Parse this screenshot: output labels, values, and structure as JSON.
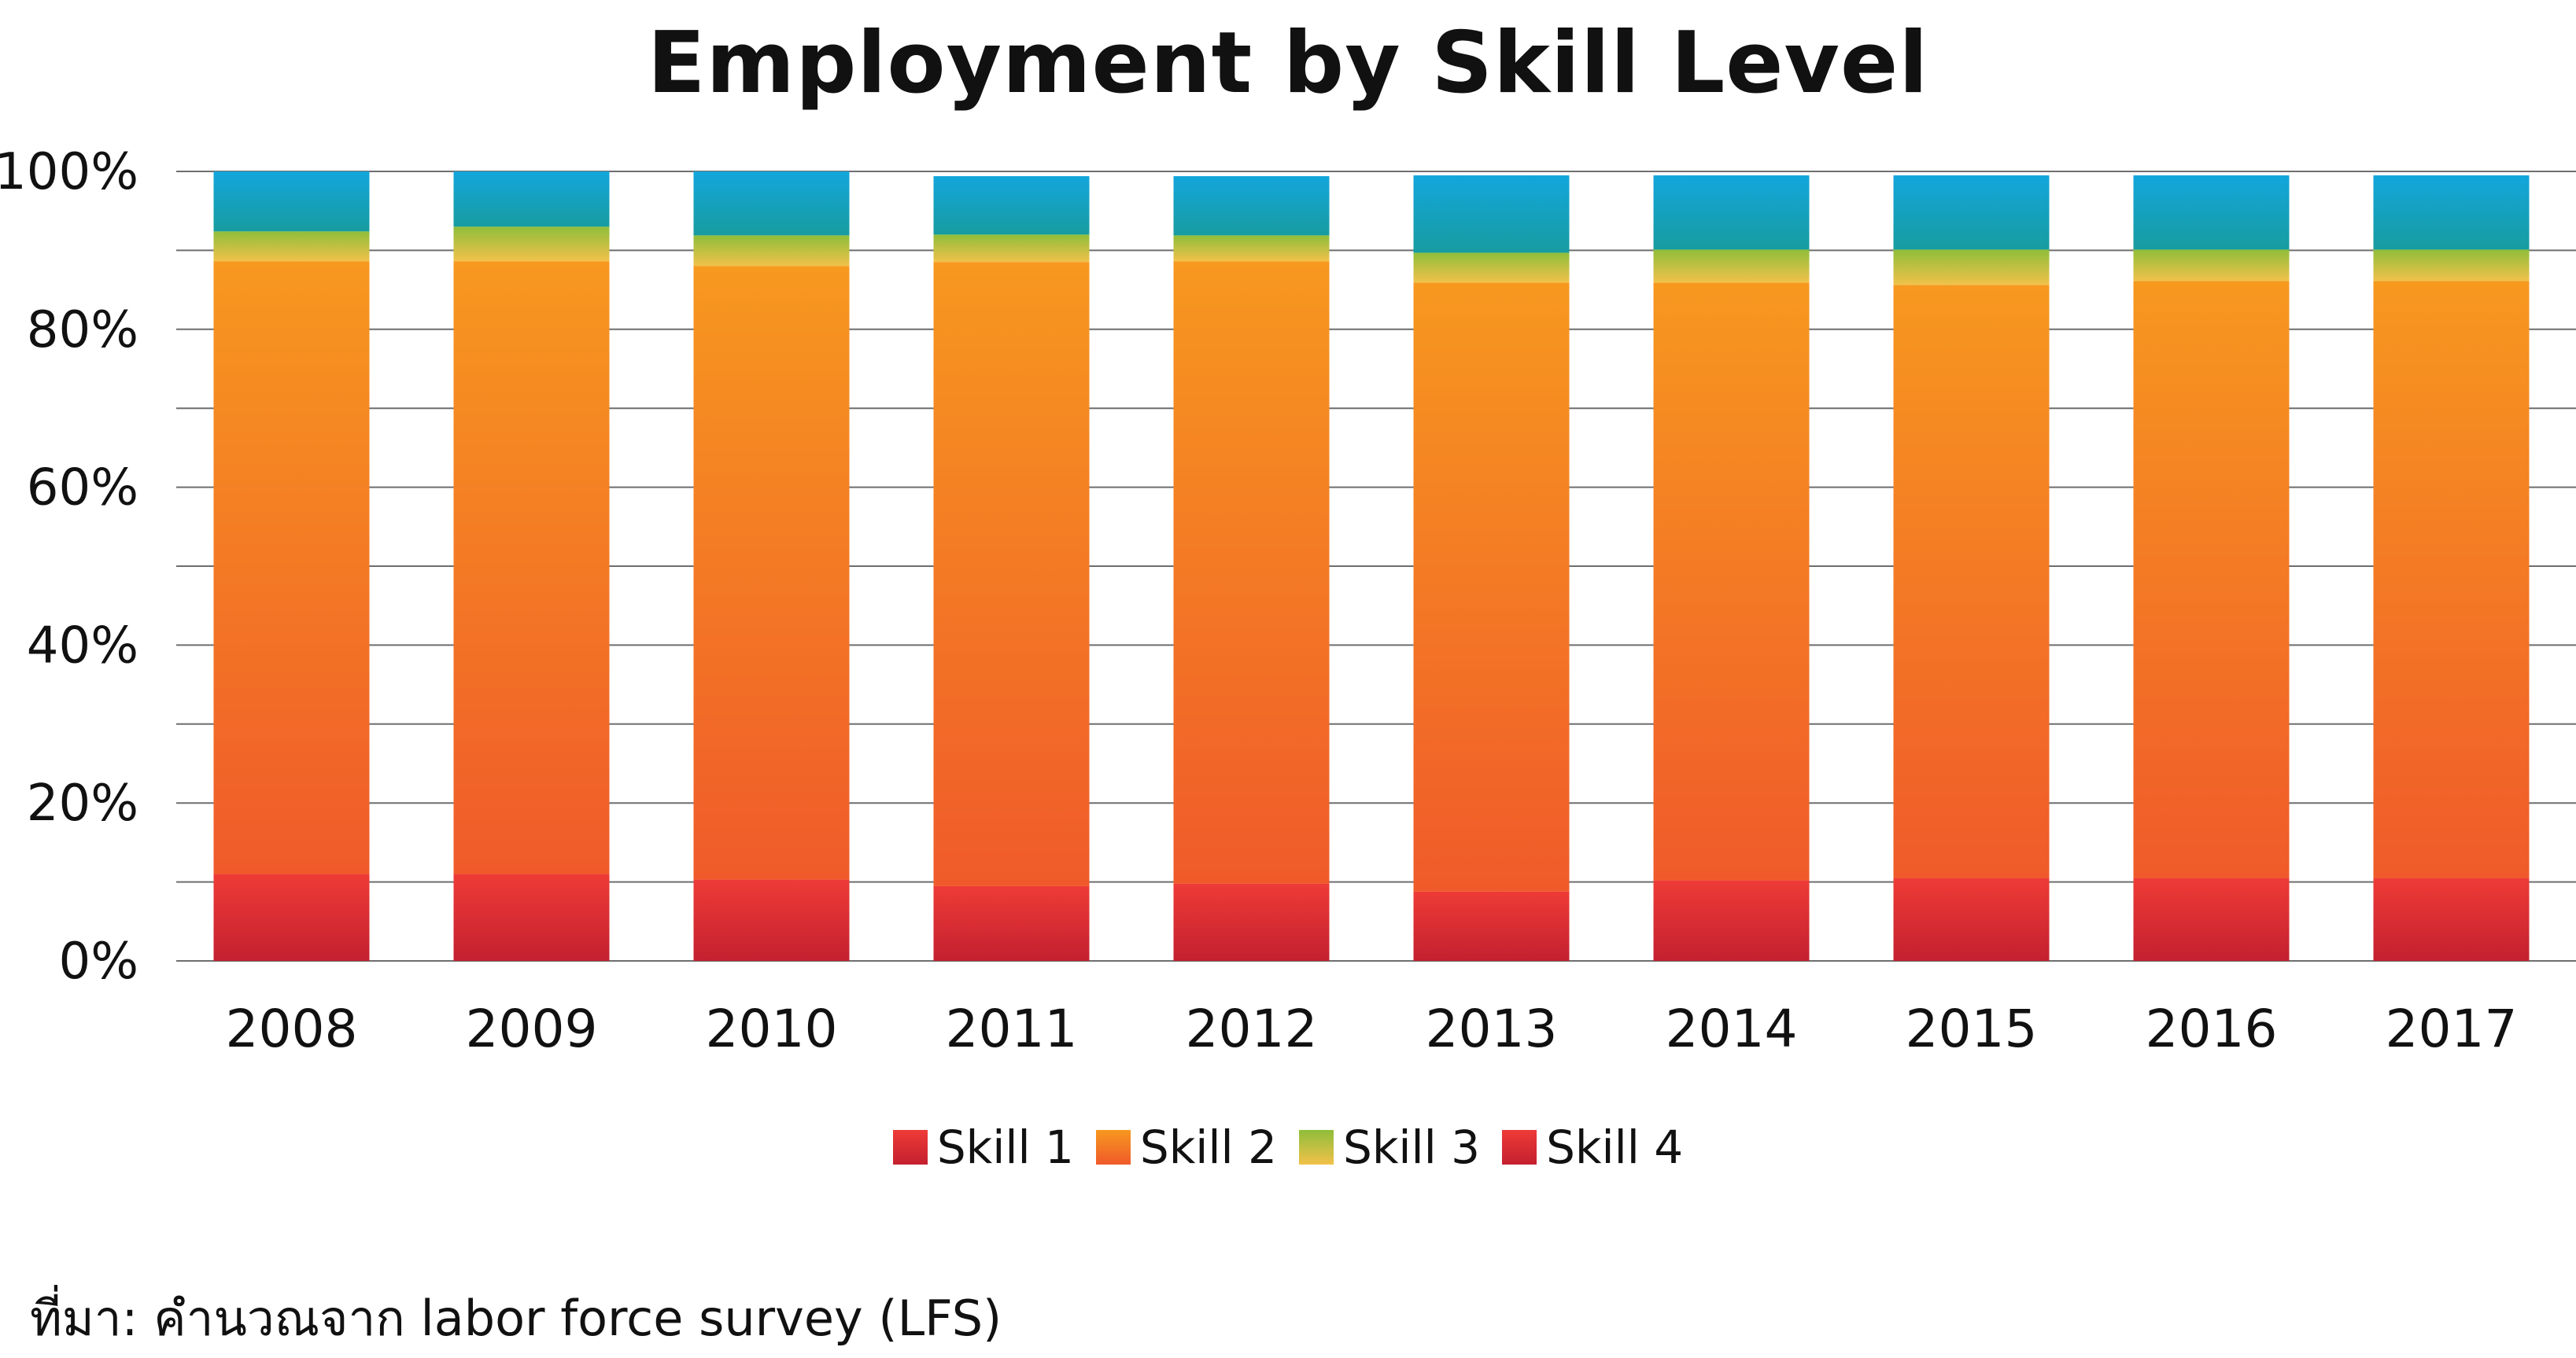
{
  "chart_data": {
    "type": "bar",
    "stacked": true,
    "title": "Employment by Skill Level",
    "xlabel": "",
    "ylabel": "",
    "ylim": [
      0,
      100
    ],
    "yticks": [
      "0%",
      "20%",
      "40%",
      "60%",
      "80%",
      "100%"
    ],
    "yticks_values": [
      0,
      20,
      40,
      60,
      80,
      100
    ],
    "grid": true,
    "legend_position": "bottom",
    "categories": [
      "2008",
      "2009",
      "2010",
      "2011",
      "2012",
      "2013",
      "2014",
      "2015",
      "2016",
      "2017"
    ],
    "series": [
      {
        "name": "Skill 1",
        "color": "#d7262e",
        "values": [
          11,
          11,
          10.3,
          9.5,
          9.8,
          8.8,
          10.2,
          10.5,
          10.5,
          10.5
        ]
      },
      {
        "name": "Skill 2",
        "color": "#f28c22",
        "values": [
          77.6,
          77.6,
          77.7,
          79,
          78.8,
          77.1,
          75.7,
          75.1,
          75.6,
          75.6
        ]
      },
      {
        "name": "Skill 3",
        "color": "#a8c03a",
        "values": [
          3.8,
          4.4,
          3.9,
          3.5,
          3.3,
          3.8,
          4.2,
          4.5,
          4.0,
          4.0
        ]
      },
      {
        "name": "Skill 4",
        "color": "#1aa9d8",
        "values": [
          7.6,
          7,
          8.1,
          7.4,
          7.5,
          9.8,
          9.4,
          9.4,
          9.4,
          9.4
        ]
      }
    ]
  },
  "legend_labels": [
    "Skill 1",
    "Skill 2",
    "Skill 3",
    "Skill 4"
  ],
  "source_note": "ที่มา: คำนวณจาก labor force survey (LFS)"
}
